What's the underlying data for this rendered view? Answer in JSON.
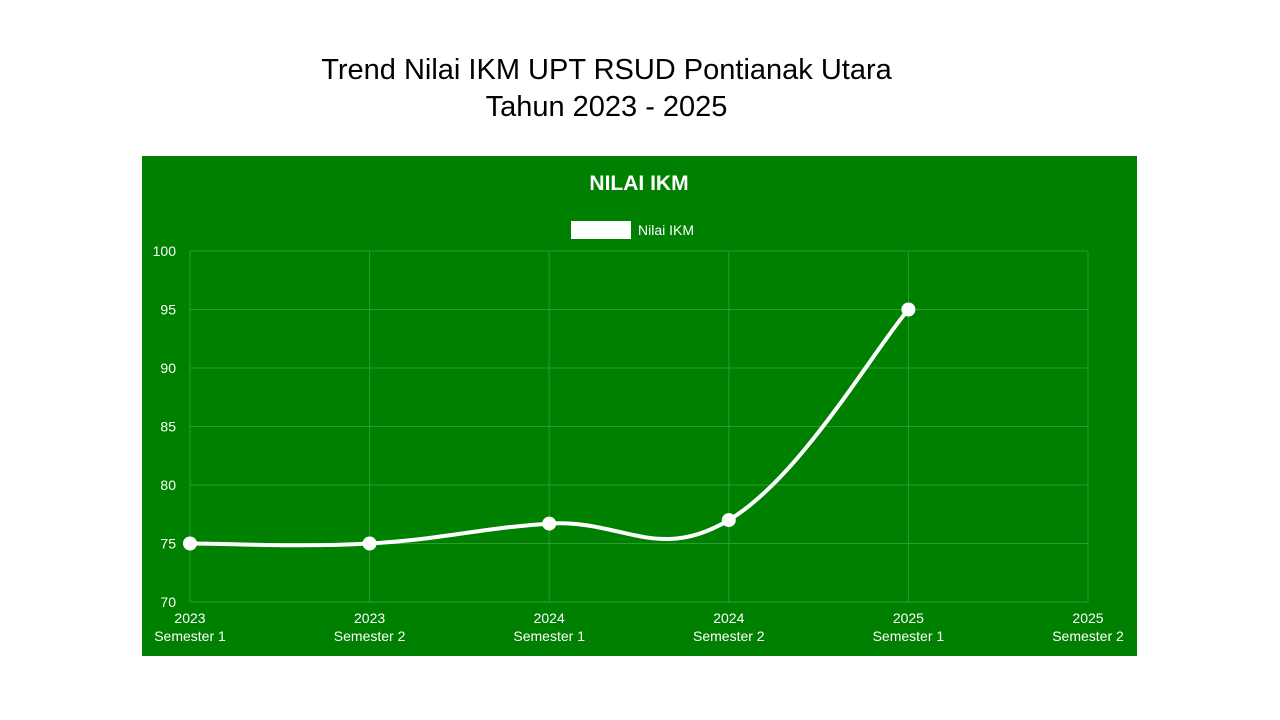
{
  "slide": {
    "title_line1": "Trend Nilai IKM UPT RSUD Pontianak Utara",
    "title_line2": "Tahun 2023 - 2025"
  },
  "colors": {
    "background": "#ffffff",
    "chart_background": "#008000",
    "line": "#ffffff",
    "grid": "#2f9a2f"
  },
  "chart_data": {
    "type": "line",
    "title": "NILAI IKM",
    "legend": {
      "position": "top-center",
      "entries": [
        "Nilai IKM"
      ]
    },
    "x": [
      [
        "2023",
        "Semester 1"
      ],
      [
        "2023",
        "Semester 2"
      ],
      [
        "2024",
        "Semester 1"
      ],
      [
        "2024",
        "Semester 2"
      ],
      [
        "2025",
        "Semester 1"
      ],
      [
        "2025",
        "Semester 2"
      ]
    ],
    "series": [
      {
        "name": "Nilai IKM",
        "values": [
          75.0,
          75.0,
          76.7,
          77.0,
          95.0,
          null
        ]
      }
    ],
    "ylim": [
      70,
      100
    ],
    "yticks": [
      70,
      75,
      80,
      85,
      90,
      95,
      100
    ],
    "grid": true,
    "smooth": true
  }
}
